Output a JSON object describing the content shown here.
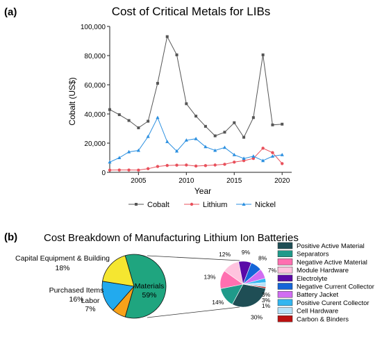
{
  "panel_a": {
    "label": "(a)",
    "title": "Cost of Critical Metals for LIBs",
    "ylabel": "Cobalt (US$)",
    "xlabel": "Year"
  },
  "panel_b": {
    "label": "(b)",
    "title": "Cost Breakdown of Manufacturing Lithium Ion Batteries"
  },
  "chart_data": [
    {
      "type": "line",
      "title": "Cost of Critical Metals for LIBs",
      "xlabel": "Year",
      "ylabel": "Cobalt (US$)",
      "xlim": [
        2002,
        2021
      ],
      "ylim": [
        0,
        100000
      ],
      "x_ticks": [
        2005,
        2010,
        2015,
        2020
      ],
      "y_ticks": [
        0,
        20000,
        40000,
        60000,
        80000,
        100000
      ],
      "y_tick_labels": [
        "0",
        "20,000",
        "40,000",
        "60,000",
        "80,000",
        "100,000"
      ],
      "legend_position": "bottom",
      "x": [
        2002,
        2003,
        2004,
        2005,
        2006,
        2007,
        2008,
        2009,
        2010,
        2011,
        2012,
        2013,
        2014,
        2015,
        2016,
        2017,
        2018,
        2019,
        2020
      ],
      "series": [
        {
          "name": "Cobalt",
          "color": "#555555",
          "marker": "square",
          "values": [
            43000,
            39500,
            35500,
            30500,
            35000,
            61000,
            93000,
            80500,
            47000,
            38500,
            31500,
            25000,
            27500,
            34000,
            24000,
            37500,
            80500,
            32500,
            33000
          ]
        },
        {
          "name": "Lithium",
          "color": "#e8505b",
          "marker": "circle",
          "values": [
            1500,
            1600,
            1600,
            1500,
            2500,
            4000,
            4700,
            4900,
            5000,
            4300,
            4600,
            5000,
            5500,
            7000,
            8000,
            9500,
            16500,
            13500,
            6000
          ]
        },
        {
          "name": "Nickel",
          "color": "#2a8fe0",
          "marker": "triangle",
          "values": [
            7000,
            10000,
            14000,
            15000,
            24500,
            37500,
            21000,
            14500,
            22000,
            23000,
            17500,
            15000,
            17000,
            12000,
            9500,
            11000,
            8000,
            11000,
            12000
          ]
        }
      ]
    },
    {
      "type": "pie",
      "slices": [
        {
          "label": "Materials",
          "value": 59,
          "display": "59%",
          "color": "#1fa57f"
        },
        {
          "label": "Labor",
          "value": 7,
          "display": "7%",
          "color": "#f7a21a"
        },
        {
          "label": "Purchased Items",
          "value": 16,
          "display": "16%",
          "color": "#22aaee"
        },
        {
          "label": "Capital Equipment & Building",
          "value": 18,
          "display": "18%",
          "color": "#f5e630"
        }
      ]
    },
    {
      "type": "pie",
      "legend_position": "right",
      "slices": [
        {
          "label": "Positive Active Material",
          "value": 30,
          "display": "30%",
          "color": "#1f4e55"
        },
        {
          "label": "Separators",
          "value": 14,
          "display": "14%",
          "color": "#1f9a8a"
        },
        {
          "label": "Negative Active Material",
          "value": 13,
          "display": "13%",
          "color": "#ff6fb0"
        },
        {
          "label": "Module Hardware",
          "value": 12,
          "display": "12%",
          "color": "#ffc3de"
        },
        {
          "label": "Electrolyte",
          "value": 9,
          "display": "9%",
          "color": "#5a0aa8"
        },
        {
          "label": "Negative Current Collector",
          "value": 8,
          "display": "8%",
          "color": "#1565d8"
        },
        {
          "label": "Battery Jacket",
          "value": 7,
          "display": "7%",
          "color": "#d16df2"
        },
        {
          "label": "Positive Curent Collector",
          "value": 3,
          "display": "3%",
          "color": "#33b6f0"
        },
        {
          "label": "Cell Hardware",
          "value": 3,
          "display": "3%",
          "color": "#b8e2f8"
        },
        {
          "label": "Carbon & Binders",
          "value": 1,
          "display": "1%",
          "color": "#bb1111"
        }
      ]
    }
  ]
}
